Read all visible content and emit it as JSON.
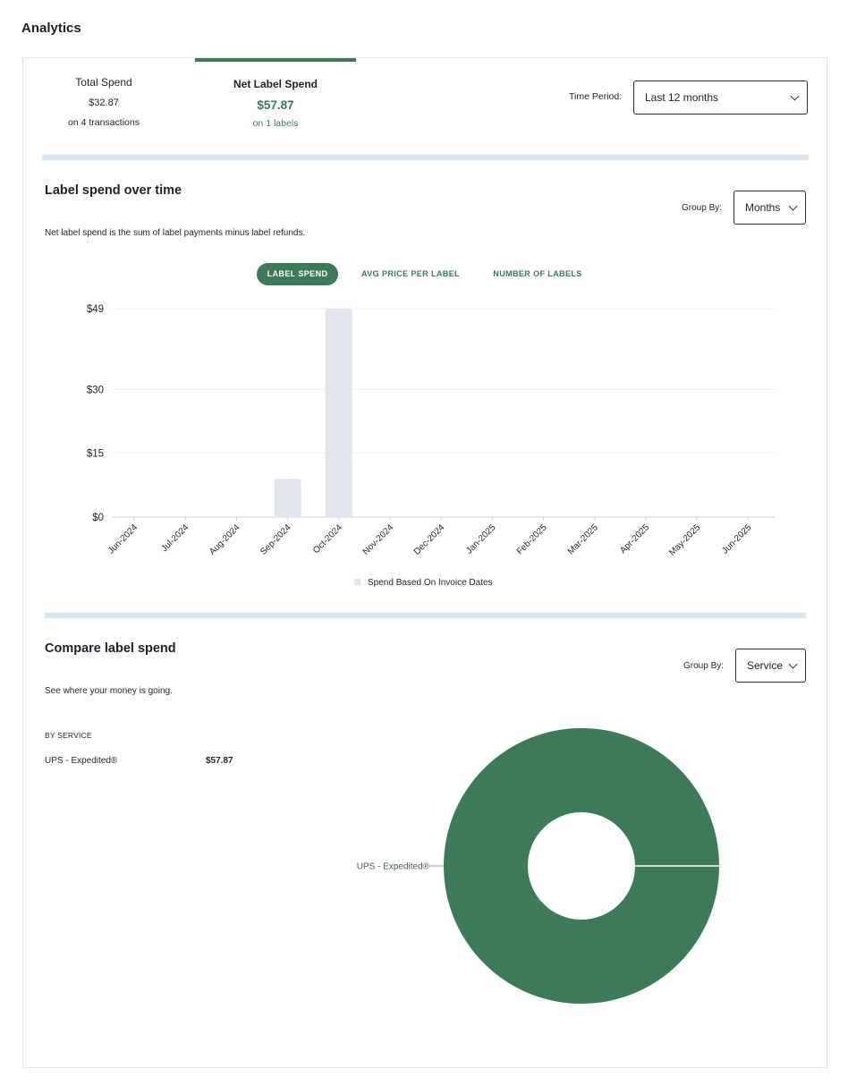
{
  "page": {
    "title": "Analytics"
  },
  "summary": {
    "total": {
      "title": "Total Spend",
      "value": "$32.87",
      "sub": "on 4 transactions"
    },
    "net": {
      "title": "Net Label Spend",
      "value": "$57.87",
      "sub": "on 1 labels"
    }
  },
  "time_period": {
    "label": "Time Period:",
    "value": "Last 12 months"
  },
  "colors": {
    "accent": "#3c7a58",
    "bar": "#e0e6ec",
    "divider": "#dde5ec"
  },
  "spend_over_time": {
    "title": "Label spend over time",
    "description": "Net label spend is the sum of label payments minus label refunds.",
    "group_by_label": "Group By:",
    "group_by_value": "Months",
    "tabs": [
      "LABEL SPEND",
      "AVG PRICE PER LABEL",
      "NUMBER OF LABELS"
    ],
    "legend": "Spend Based On Invoice Dates"
  },
  "compare": {
    "title": "Compare label spend",
    "description": "See where your money is going.",
    "group_by_label": "Group By:",
    "group_by_value": "Service",
    "list_header": "BY SERVICE",
    "rows": [
      {
        "label": "UPS - Expedited®",
        "value": "$57.87"
      }
    ]
  },
  "chart_data": [
    {
      "type": "bar",
      "categories": [
        "Jun-2024",
        "Jul-2024",
        "Aug-2024",
        "Sep-2024",
        "Oct-2024",
        "Nov-2024",
        "Dec-2024",
        "Jan-2025",
        "Feb-2025",
        "Mar-2025",
        "Apr-2025",
        "May-2025",
        "Jun-2025"
      ],
      "series": [
        {
          "name": "Spend Based On Invoice Dates",
          "values": [
            0,
            0,
            0,
            9,
            49,
            0,
            0,
            0,
            0,
            0,
            0,
            0,
            0
          ]
        }
      ],
      "yticks": [
        0,
        15,
        30,
        49
      ],
      "ytick_labels": [
        "$0",
        "$15",
        "$30",
        "$49"
      ],
      "ylim": [
        0,
        49
      ],
      "grid": true,
      "legend_position": "bottom"
    },
    {
      "type": "pie",
      "donut": true,
      "labels": [
        "UPS - Expedited®"
      ],
      "values": [
        57.87
      ]
    }
  ]
}
